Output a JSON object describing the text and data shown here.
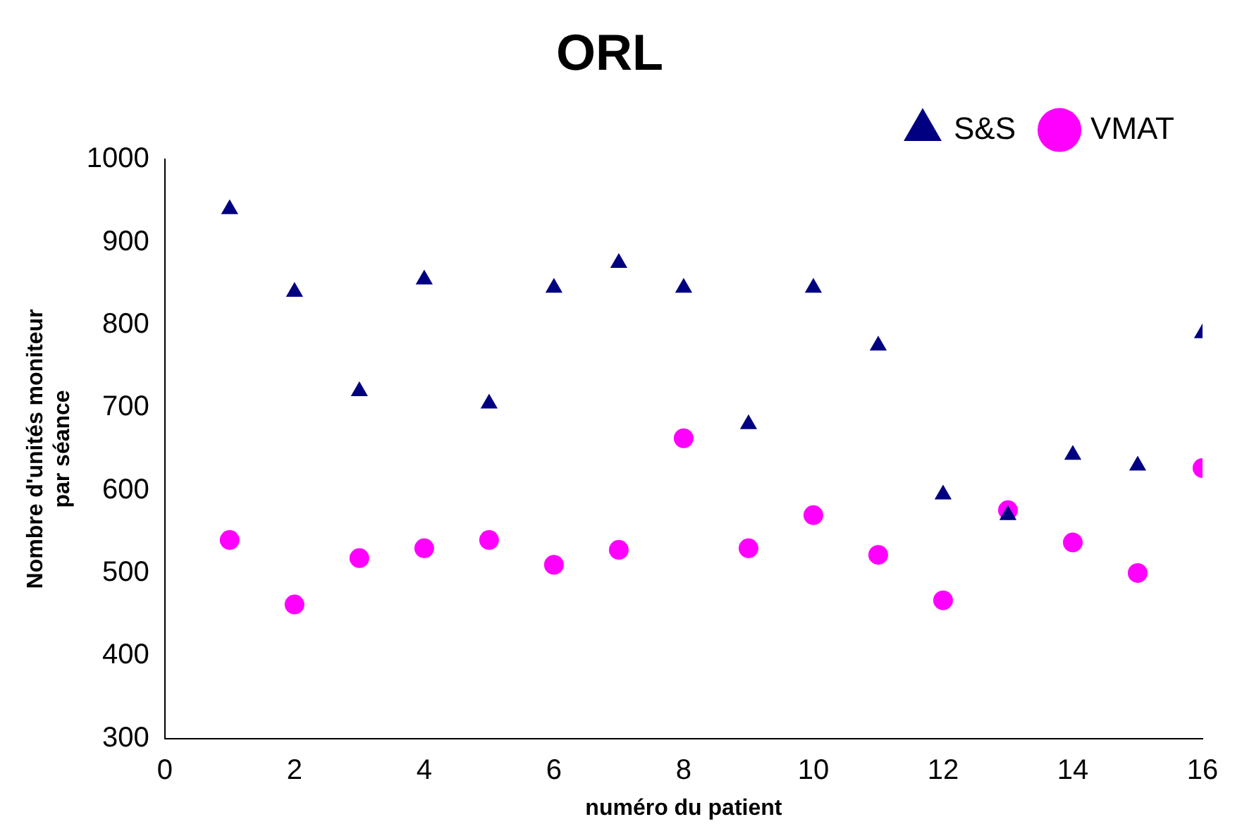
{
  "chart_data": {
    "type": "scatter",
    "title": "ORL",
    "xlabel": "numéro du patient",
    "ylabel": "Nombre d'unités moniteur\npar séance",
    "x": [
      1,
      2,
      3,
      4,
      5,
      6,
      7,
      8,
      9,
      10,
      11,
      12,
      13,
      14,
      15,
      16
    ],
    "series": [
      {
        "name": "S&S",
        "color": "#000080",
        "marker": "triangle",
        "values": [
          940,
          840,
          720,
          855,
          705,
          845,
          875,
          845,
          680,
          845,
          775,
          595,
          570,
          643,
          630,
          790
        ]
      },
      {
        "name": "VMAT",
        "color": "#ff00ff",
        "marker": "circle",
        "values": [
          540,
          462,
          518,
          530,
          540,
          510,
          528,
          663,
          530,
          570,
          522,
          467,
          576,
          537,
          500,
          627
        ]
      }
    ],
    "xlim": [
      0,
      16
    ],
    "xticks": [
      0,
      2,
      4,
      6,
      8,
      10,
      12,
      14,
      16
    ],
    "ylim": [
      300,
      1000
    ],
    "yticks": [
      300,
      400,
      500,
      600,
      700,
      800,
      900,
      1000
    ],
    "grid": false,
    "legend": "top right"
  }
}
